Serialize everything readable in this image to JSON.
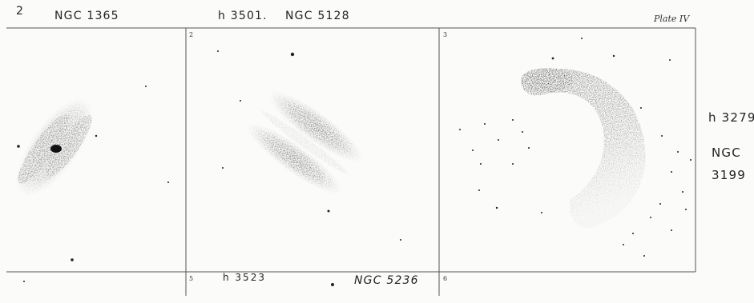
{
  "plate": {
    "label": "Plate IV",
    "top_notes": {
      "n1_index": "2",
      "n1_name": "NGC 1365",
      "n2_h": "h 3501.",
      "n2_name": "NGC 5128"
    },
    "side_notes": {
      "h": "h 3279",
      "ngc": "NGC",
      "num": "3199"
    },
    "bottom_notes": {
      "h": "h 3523",
      "ngc": "NGC 5236"
    },
    "panels": [
      {
        "number": ""
      },
      {
        "number": "2"
      },
      {
        "number": "3"
      },
      {
        "number": ""
      },
      {
        "number": "5"
      },
      {
        "number": "6"
      }
    ]
  },
  "colors": {
    "paper": "#fbfbfa",
    "ink": "#1f1f1f",
    "rule": "#555555"
  }
}
